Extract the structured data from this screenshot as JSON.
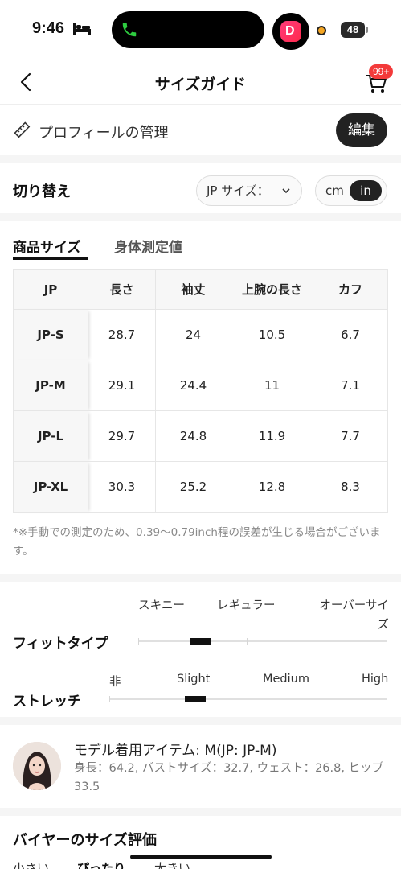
{
  "status_bar": {
    "time": "9:46",
    "battery": "48"
  },
  "app": {
    "badge_icon_letter": "D"
  },
  "header": {
    "title": "サイズガイド",
    "cart_badge": "99+"
  },
  "profile": {
    "label": "プロフィールの管理",
    "edit_label": "編集"
  },
  "switch": {
    "label": "切り替え",
    "size_system": "JP サイズ：",
    "unit_cm": "cm",
    "unit_in": "in",
    "selected_unit": "in"
  },
  "tabs": [
    {
      "label": "商品サイズ",
      "active": true
    },
    {
      "label": "身体測定値",
      "active": false
    }
  ],
  "table": {
    "headers": [
      "JP",
      "長さ",
      "袖丈",
      "上腕の長さ",
      "カフ"
    ],
    "rows": [
      [
        "JP-S",
        "28.7",
        "24",
        "10.5",
        "6.7"
      ],
      [
        "JP-M",
        "29.1",
        "24.4",
        "11",
        "7.1"
      ],
      [
        "JP-L",
        "29.7",
        "24.8",
        "11.9",
        "7.7"
      ],
      [
        "JP-XL",
        "30.3",
        "25.2",
        "12.8",
        "8.3"
      ]
    ]
  },
  "note": "*※手動での測定のため、0.39〜0.79inch程の誤差が生じる場合がございます。",
  "fit": {
    "label": "フィットタイプ",
    "options": [
      "スキニー",
      "レギュラー",
      "オーバーサイズ"
    ],
    "value_fraction": 0.25
  },
  "stretch": {
    "label": "ストレッチ",
    "options": [
      "非",
      "Slight",
      "Medium",
      "High"
    ],
    "value_fraction": 0.31
  },
  "model": {
    "title": "モデル着用アイテム: M(JP: JP-M)",
    "detail": "身長：64.2, バストサイズ：32.7, ウェスト：26.8, ヒップ33.5"
  },
  "reviews": {
    "title": "バイヤーのサイズ評価",
    "tabs": [
      "小さい",
      "ぴったり",
      "大きい"
    ]
  },
  "colors": {
    "accent": "#222222",
    "badge": "#f33a3a",
    "muted_text": "#8a8a8a"
  }
}
